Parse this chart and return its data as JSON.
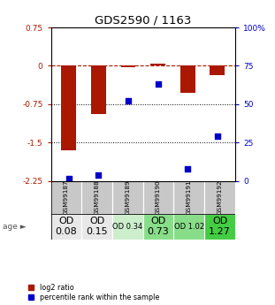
{
  "title": "GDS2590 / 1163",
  "samples": [
    "GSM99187",
    "GSM99188",
    "GSM99189",
    "GSM99190",
    "GSM99191",
    "GSM99192"
  ],
  "log2_ratio": [
    -1.65,
    -0.95,
    -0.03,
    0.05,
    -0.52,
    -0.18
  ],
  "percentile_rank": [
    1.5,
    3.5,
    52,
    63,
    8,
    29
  ],
  "ylim_left": [
    -2.25,
    0.75
  ],
  "ylim_right": [
    0,
    100
  ],
  "yticks_left": [
    0.75,
    0,
    -0.75,
    -1.5,
    -2.25
  ],
  "yticks_right": [
    100,
    75,
    50,
    25,
    0
  ],
  "hline_zero": 0,
  "hline_dotted1": -0.75,
  "hline_dotted2": -1.5,
  "bar_color": "#aa1800",
  "scatter_color": "#0000cc",
  "age_labels": [
    "OD\n0.08",
    "OD\n0.15",
    "OD 0.34",
    "OD\n0.73",
    "OD 1.02",
    "OD\n1.27"
  ],
  "age_bg_colors": [
    "#e8e8e8",
    "#e8e8e8",
    "#cceecc",
    "#88dd88",
    "#88dd88",
    "#44cc44"
  ],
  "age_fontsize_big": 8,
  "age_fontsize_small": 6,
  "age_big_idx": [
    0,
    1,
    3,
    5
  ],
  "age_small_idx": [
    2,
    4
  ],
  "sample_bg_color": "#c8c8c8",
  "legend_red_label": "log2 ratio",
  "legend_blue_label": "percentile rank within the sample"
}
